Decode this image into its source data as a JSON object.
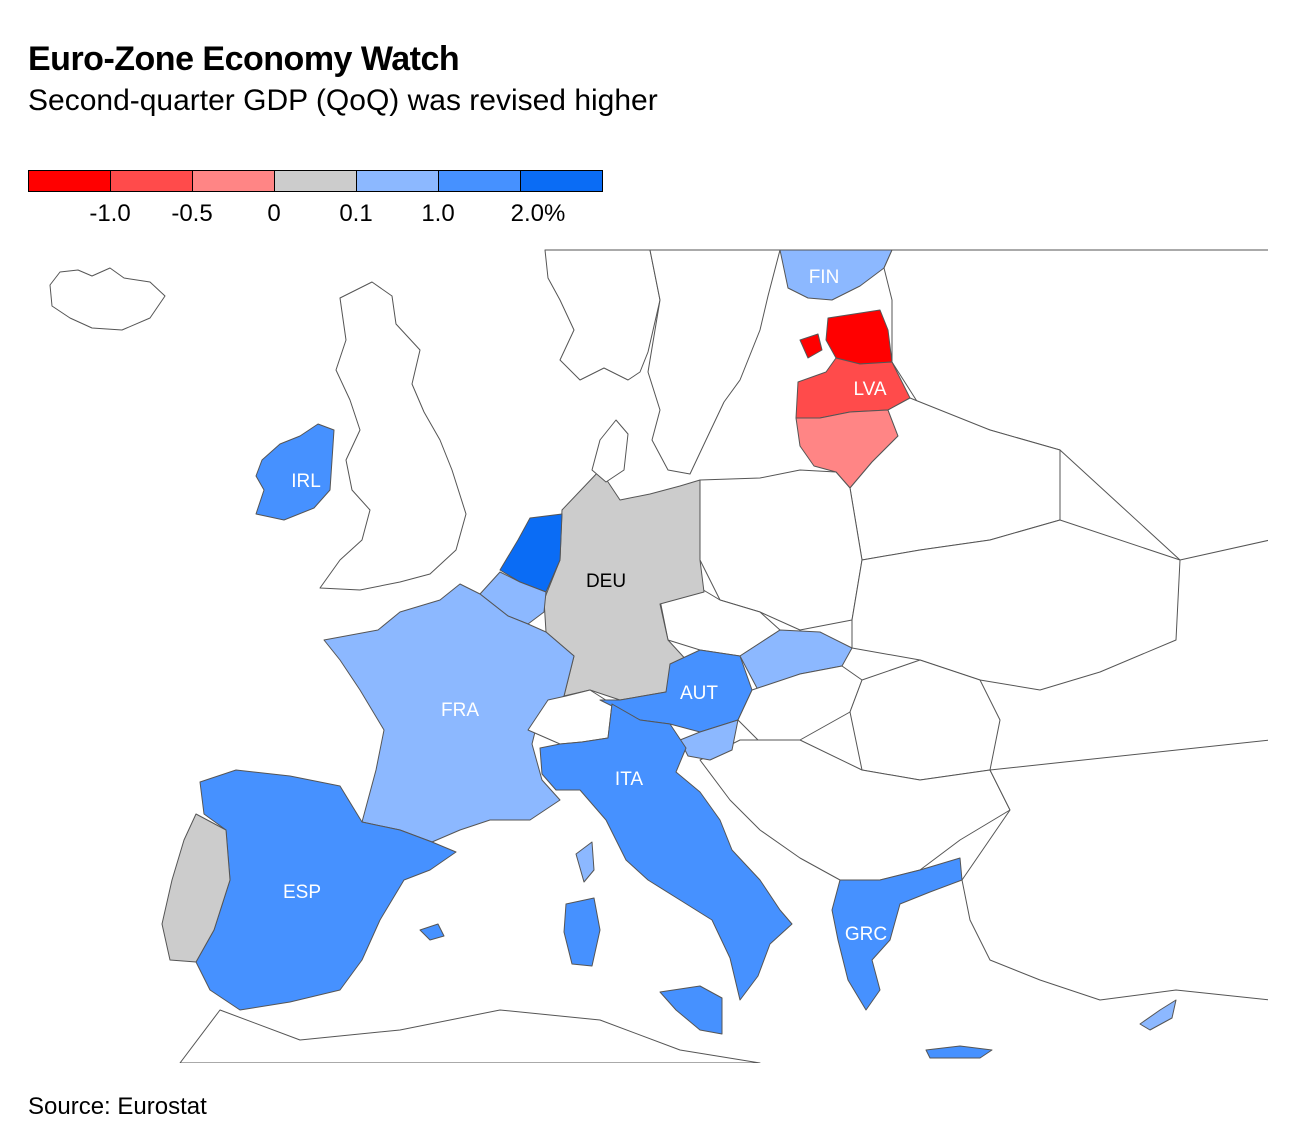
{
  "header": {
    "title": "Euro-Zone Economy Watch",
    "subtitle": "Second-quarter GDP (QoQ) was revised higher"
  },
  "legend": {
    "colors": [
      "#ff0000",
      "#ff4b4b",
      "#ff8585",
      "#cccccc",
      "#8cb8ff",
      "#4691ff",
      "#0a6cf5"
    ],
    "ticks": [
      "-1.0",
      "-0.5",
      "0",
      "0.1",
      "1.0",
      "2.0%"
    ]
  },
  "map": {
    "country_labels": {
      "FIN": "FIN",
      "LVA": "LVA",
      "IRL": "IRL",
      "DEU": "DEU",
      "FRA": "FRA",
      "AUT": "AUT",
      "ITA": "ITA",
      "ESP": "ESP",
      "GRC": "GRC"
    },
    "fills": {
      "no_data": "#ffffff",
      "EST": "#ff0000",
      "LVA": "#ff4b4b",
      "LTU": "#ff8585",
      "DEU": "#cccccc",
      "PRT": "#cccccc",
      "FIN": "#8cb8ff",
      "FRA": "#8cb8ff",
      "BEL": "#8cb8ff",
      "SVK": "#8cb8ff",
      "SVN": "#8cb8ff",
      "CYP": "#8cb8ff",
      "IRL": "#4691ff",
      "AUT": "#4691ff",
      "ITA": "#4691ff",
      "ESP": "#4691ff",
      "GRC": "#4691ff",
      "MLT": "#4691ff",
      "NLD": "#0a6cf5"
    }
  },
  "footer": {
    "source": "Source: Eurostat"
  }
}
